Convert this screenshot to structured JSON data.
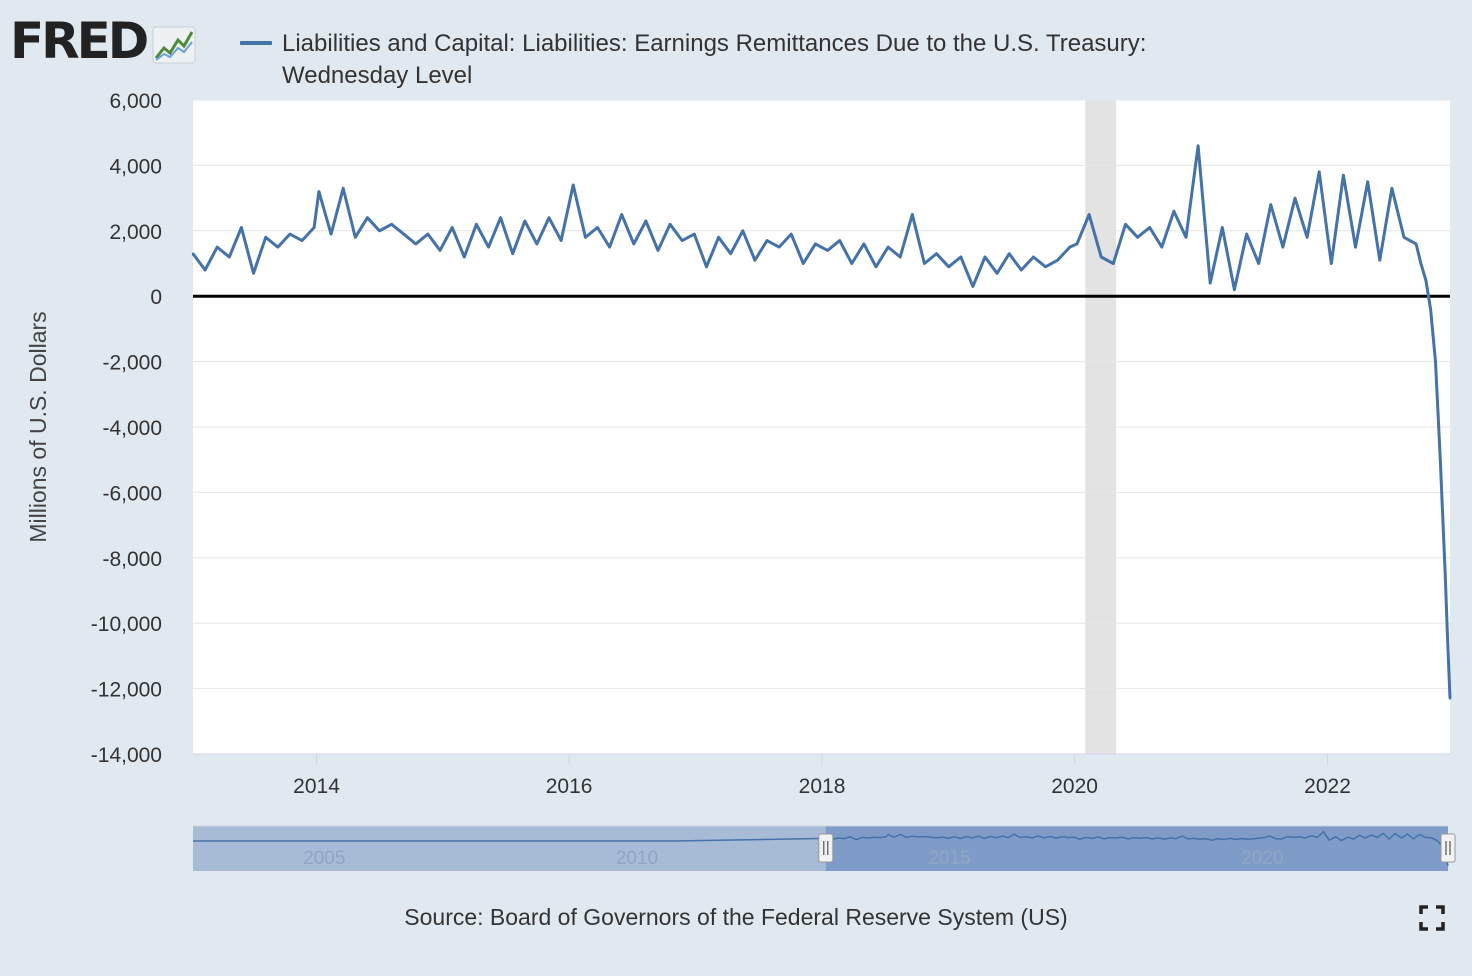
{
  "logo": {
    "text": "FRED",
    "icon": "line-graph-icon"
  },
  "legend": {
    "series_title": "Liabilities and Capital: Liabilities: Earnings Remittances Due to the U.S. Treasury: Wednesday Level",
    "color": "#4572a7"
  },
  "chart_data": {
    "type": "line",
    "title": "Liabilities and Capital: Liabilities: Earnings Remittances Due to the U.S. Treasury: Wednesday Level",
    "xlabel": "",
    "ylabel": "Millions of U.S. Dollars",
    "xlim": [
      "2013-01-09",
      "2022-12-21"
    ],
    "ylim": [
      -14000,
      6000
    ],
    "yticks": [
      6000,
      4000,
      2000,
      0,
      -2000,
      -4000,
      -6000,
      -8000,
      -10000,
      -12000,
      -14000
    ],
    "ytick_labels": [
      "6,000",
      "4,000",
      "2,000",
      "0",
      "-2,000",
      "-4,000",
      "-6,000",
      "-8,000",
      "-10,000",
      "-12,000",
      "-14,000"
    ],
    "xticks": [
      "2014-01-01",
      "2016-01-01",
      "2018-01-01",
      "2020-01-01",
      "2022-01-01"
    ],
    "xtick_labels": [
      "2014",
      "2016",
      "2018",
      "2020",
      "2022"
    ],
    "grid": "horizontal",
    "zero_line": true,
    "recession_shading": [
      [
        "2020-02-01",
        "2020-04-30"
      ]
    ],
    "series": [
      {
        "color": "#4572a7",
        "x": [
          "2013-01-09",
          "2013-02-13",
          "2013-03-20",
          "2013-04-24",
          "2013-05-29",
          "2013-07-03",
          "2013-08-07",
          "2013-09-11",
          "2013-10-16",
          "2013-11-20",
          "2013-12-25",
          "2014-01-08",
          "2014-02-12",
          "2014-03-19",
          "2014-04-23",
          "2014-05-28",
          "2014-07-02",
          "2014-08-06",
          "2014-09-10",
          "2014-10-15",
          "2014-11-19",
          "2014-12-24",
          "2015-01-28",
          "2015-03-04",
          "2015-04-08",
          "2015-05-13",
          "2015-06-17",
          "2015-07-22",
          "2015-08-26",
          "2015-09-30",
          "2015-11-04",
          "2015-12-09",
          "2016-01-13",
          "2016-02-17",
          "2016-03-23",
          "2016-04-27",
          "2016-06-01",
          "2016-07-06",
          "2016-08-10",
          "2016-09-14",
          "2016-10-19",
          "2016-11-23",
          "2016-12-28",
          "2017-02-01",
          "2017-03-08",
          "2017-04-12",
          "2017-05-17",
          "2017-06-21",
          "2017-07-26",
          "2017-08-30",
          "2017-10-04",
          "2017-11-08",
          "2017-12-13",
          "2018-01-17",
          "2018-02-21",
          "2018-03-28",
          "2018-05-02",
          "2018-06-06",
          "2018-07-11",
          "2018-08-15",
          "2018-09-19",
          "2018-10-24",
          "2018-11-28",
          "2019-01-02",
          "2019-02-06",
          "2019-03-13",
          "2019-04-17",
          "2019-05-22",
          "2019-06-26",
          "2019-07-31",
          "2019-09-04",
          "2019-10-09",
          "2019-11-13",
          "2019-12-18",
          "2020-01-08",
          "2020-02-12",
          "2020-03-18",
          "2020-04-22",
          "2020-05-27",
          "2020-07-01",
          "2020-08-05",
          "2020-09-09",
          "2020-10-14",
          "2020-11-18",
          "2020-12-23",
          "2021-01-27",
          "2021-03-03",
          "2021-04-07",
          "2021-05-12",
          "2021-06-16",
          "2021-07-21",
          "2021-08-25",
          "2021-09-29",
          "2021-11-03",
          "2021-12-08",
          "2022-01-12",
          "2022-02-16",
          "2022-03-23",
          "2022-04-27",
          "2022-06-01",
          "2022-07-06",
          "2022-08-10",
          "2022-09-14",
          "2022-09-28",
          "2022-10-12",
          "2022-10-26",
          "2022-11-09",
          "2022-11-23",
          "2022-12-07",
          "2022-12-14",
          "2022-12-21"
        ],
        "y": [
          1300,
          800,
          1500,
          1200,
          2100,
          700,
          1800,
          1500,
          1900,
          1700,
          2100,
          3200,
          1900,
          3300,
          1800,
          2400,
          2000,
          2200,
          1900,
          1600,
          1900,
          1400,
          2100,
          1200,
          2200,
          1500,
          2400,
          1300,
          2300,
          1600,
          2400,
          1700,
          3400,
          1800,
          2100,
          1500,
          2500,
          1600,
          2300,
          1400,
          2200,
          1700,
          1900,
          900,
          1800,
          1300,
          2000,
          1100,
          1700,
          1500,
          1900,
          1000,
          1600,
          1400,
          1700,
          1000,
          1600,
          900,
          1500,
          1200,
          2500,
          1000,
          1300,
          900,
          1200,
          300,
          1200,
          700,
          1300,
          800,
          1200,
          900,
          1100,
          1500,
          1600,
          2500,
          1200,
          1000,
          2200,
          1800,
          2100,
          1500,
          2600,
          1800,
          4600,
          400,
          2100,
          200,
          1900,
          1000,
          2800,
          1500,
          3000,
          1800,
          3800,
          1000,
          3700,
          1500,
          3500,
          1100,
          3300,
          1800,
          1600,
          1000,
          500,
          -400,
          -2000,
          -5000,
          -8500,
          -10500,
          -12300
        ]
      }
    ]
  },
  "navigator": {
    "labels": [
      "2005",
      "2010",
      "2015",
      "2020"
    ],
    "years": [
      2005,
      2010,
      2015,
      2020
    ],
    "range_years": [
      2002.9,
      2022.97
    ],
    "selected_years": [
      2013.02,
      2022.97
    ]
  },
  "source": "Source: Board of Governors of the Federal Reserve System (US)",
  "icons": {
    "fullscreen": "fullscreen-icon"
  }
}
